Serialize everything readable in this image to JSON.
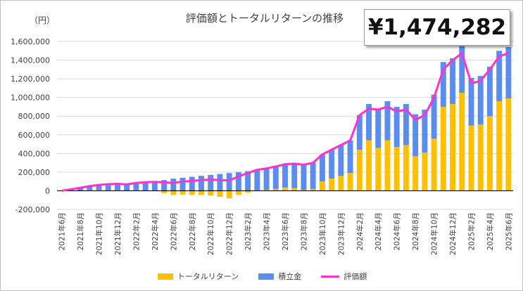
{
  "chart_data": {
    "type": "bar",
    "title": "評価額とトータルリターンの推移",
    "ylabel": "（円）",
    "ylim": [
      -200000,
      1600000
    ],
    "yticks": [
      "-200,000",
      "0",
      "200,000",
      "400,000",
      "600,000",
      "800,000",
      "1,000,000",
      "1,200,000",
      "1,400,000",
      "1,600,000"
    ],
    "callout": "¥1,474,282",
    "categories": [
      "2021年6月",
      "2021年7月",
      "2021年8月",
      "2021年9月",
      "2021年10月",
      "2021年11月",
      "2021年12月",
      "2022年1月",
      "2022年2月",
      "2022年3月",
      "2022年4月",
      "2022年5月",
      "2022年6月",
      "2022年7月",
      "2022年8月",
      "2022年9月",
      "2022年10月",
      "2022年11月",
      "2022年12月",
      "2023年1月",
      "2023年2月",
      "2023年3月",
      "2023年4月",
      "2023年5月",
      "2023年6月",
      "2023年7月",
      "2023年8月",
      "2023年9月",
      "2023年10月",
      "2023年11月",
      "2023年12月",
      "2024年1月",
      "2024年2月",
      "2024年3月",
      "2024年4月",
      "2024年5月",
      "2024年6月",
      "2024年7月",
      "2024年8月",
      "2024年9月",
      "2024年10月",
      "2024年11月",
      "2024年12月",
      "2025年1月",
      "2025年2月",
      "2025年3月",
      "2025年4月",
      "2025年5月",
      "2025年6月"
    ],
    "series": [
      {
        "name": "トータルリターン",
        "color": "#ffc000",
        "kind": "bar",
        "values": [
          0,
          1000,
          3000,
          5000,
          8000,
          6000,
          5000,
          -2000,
          5000,
          2000,
          -5000,
          -25000,
          -45000,
          -40000,
          -45000,
          -45000,
          -50000,
          -65000,
          -80000,
          -45000,
          -20000,
          5000,
          10000,
          20000,
          35000,
          30000,
          10000,
          20000,
          100000,
          130000,
          160000,
          190000,
          440000,
          540000,
          460000,
          540000,
          470000,
          490000,
          370000,
          410000,
          560000,
          900000,
          930000,
          1050000,
          700000,
          710000,
          800000,
          960000,
          990000
        ]
      },
      {
        "name": "積立金",
        "color": "#5b8def",
        "kind": "bar",
        "values": [
          0,
          15000,
          30000,
          45000,
          55000,
          65000,
          70000,
          70000,
          80000,
          90000,
          100000,
          115000,
          130000,
          140000,
          150000,
          160000,
          170000,
          180000,
          190000,
          200000,
          210000,
          220000,
          230000,
          240000,
          250000,
          260000,
          270000,
          280000,
          290000,
          310000,
          330000,
          350000,
          370000,
          390000,
          410000,
          420000,
          430000,
          440000,
          450000,
          460000,
          470000,
          480000,
          490000,
          500000,
          510000,
          520000,
          530000,
          540000,
          550000
        ]
      },
      {
        "name": "評価額",
        "color": "#ff33cc",
        "kind": "line",
        "values": [
          0,
          16000,
          33000,
          50000,
          63000,
          71000,
          75000,
          68000,
          85000,
          92000,
          95000,
          90000,
          85000,
          100000,
          105000,
          115000,
          120000,
          115000,
          110000,
          155000,
          190000,
          225000,
          240000,
          260000,
          285000,
          290000,
          280000,
          300000,
          390000,
          440000,
          490000,
          540000,
          810000,
          880000,
          870000,
          900000,
          850000,
          870000,
          760000,
          810000,
          1000000,
          1300000,
          1400000,
          1474282,
          1150000,
          1180000,
          1300000,
          1440000,
          1474282
        ]
      }
    ]
  }
}
